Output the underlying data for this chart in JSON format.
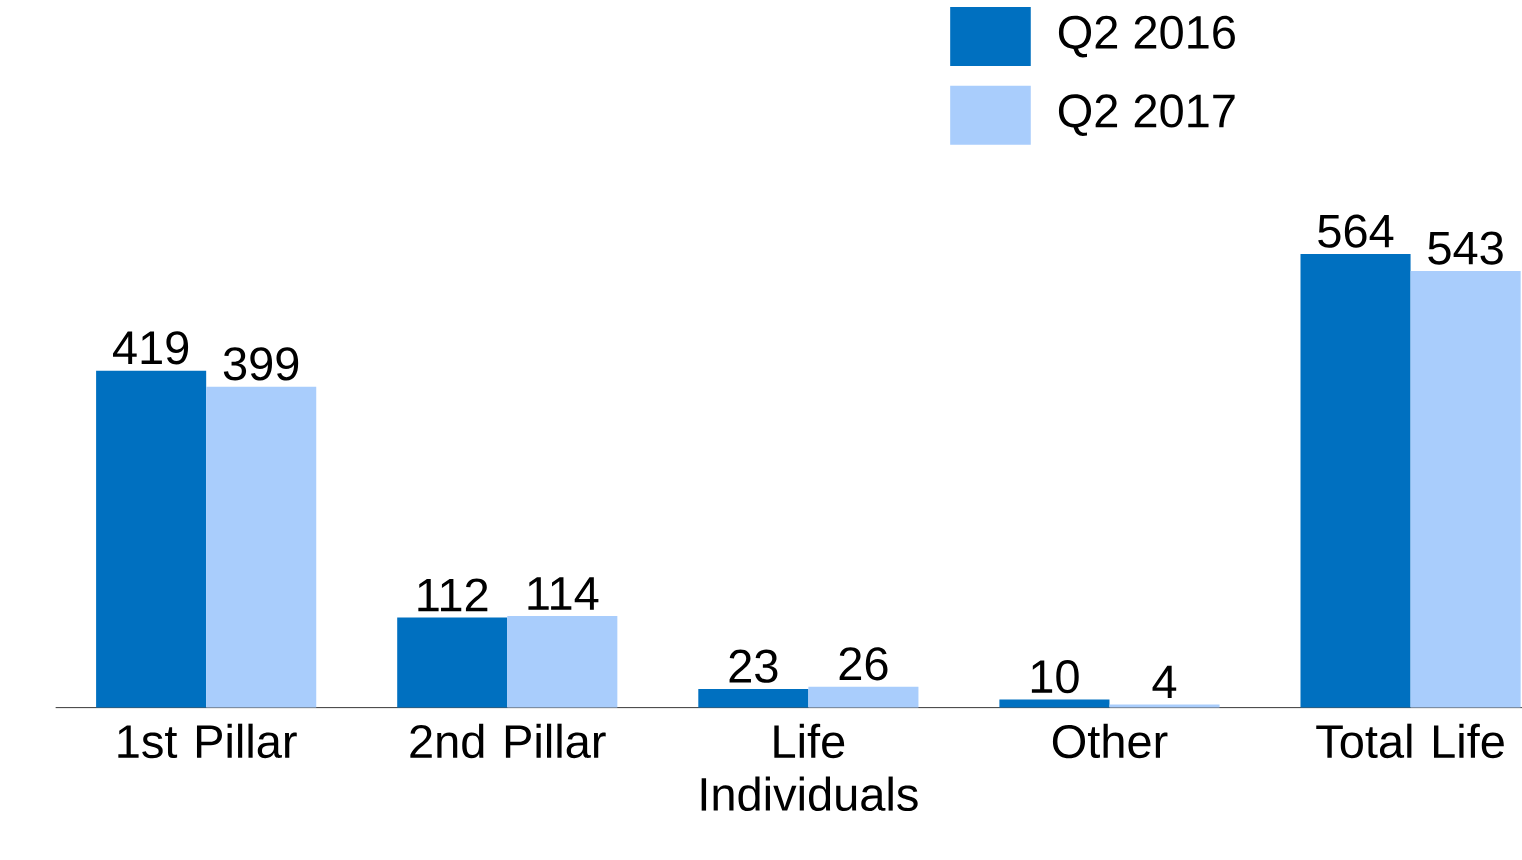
{
  "chart_data": {
    "type": "bar",
    "categories": [
      "1st Pillar",
      "2nd Pillar",
      "Life Individuals",
      "Other",
      "Total Life"
    ],
    "series": [
      {
        "name": "Q2 2016",
        "color": "#0070c0",
        "values": [
          419,
          112,
          23,
          10,
          564
        ]
      },
      {
        "name": "Q2 2017",
        "color": "#a9cdfc",
        "values": [
          399,
          114,
          26,
          4,
          543
        ]
      }
    ],
    "ylim": [
      0,
      880
    ],
    "data_labels": true,
    "legend": "top right"
  }
}
